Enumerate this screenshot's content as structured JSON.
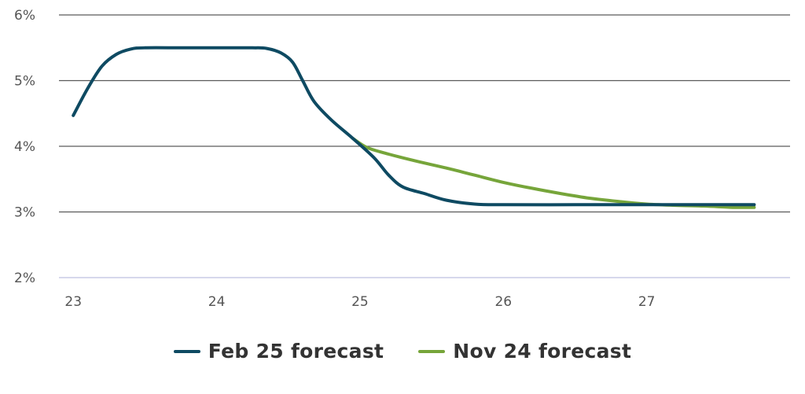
{
  "chart_data": {
    "type": "line",
    "x_tick_labels": [
      "23",
      "24",
      "25",
      "26",
      "27"
    ],
    "y_tick_labels": [
      "6%",
      "5%",
      "4%",
      "3%",
      "2%"
    ],
    "x_ticks": [
      23,
      24,
      25,
      26,
      27
    ],
    "y_ticks": [
      6,
      5,
      4,
      3,
      2
    ],
    "xlim": [
      22.9,
      28.0
    ],
    "ylim": [
      2,
      6
    ],
    "grid": true,
    "legend_position": "bottom-center",
    "title": "",
    "xlabel": "",
    "ylabel": "",
    "series": [
      {
        "name": "Feb 25 forecast",
        "color": "#0e4a62",
        "points": [
          [
            23.0,
            4.47
          ],
          [
            23.1,
            4.88
          ],
          [
            23.2,
            5.22
          ],
          [
            23.3,
            5.4
          ],
          [
            23.4,
            5.48
          ],
          [
            23.5,
            5.5
          ],
          [
            23.75,
            5.5
          ],
          [
            24.0,
            5.5
          ],
          [
            24.25,
            5.5
          ],
          [
            24.35,
            5.49
          ],
          [
            24.45,
            5.42
          ],
          [
            24.53,
            5.28
          ],
          [
            24.6,
            5.0
          ],
          [
            24.68,
            4.68
          ],
          [
            24.8,
            4.4
          ],
          [
            24.95,
            4.12
          ],
          [
            25.1,
            3.82
          ],
          [
            25.2,
            3.56
          ],
          [
            25.3,
            3.38
          ],
          [
            25.45,
            3.28
          ],
          [
            25.6,
            3.18
          ],
          [
            25.8,
            3.12
          ],
          [
            26.0,
            3.11
          ],
          [
            26.5,
            3.11
          ],
          [
            27.0,
            3.11
          ],
          [
            27.5,
            3.11
          ],
          [
            27.75,
            3.11
          ]
        ]
      },
      {
        "name": "Nov 24 forecast",
        "color": "#76a53a",
        "points": [
          [
            24.95,
            4.12
          ],
          [
            25.05,
            3.98
          ],
          [
            25.2,
            3.88
          ],
          [
            25.4,
            3.77
          ],
          [
            25.6,
            3.67
          ],
          [
            25.8,
            3.56
          ],
          [
            26.0,
            3.45
          ],
          [
            26.2,
            3.36
          ],
          [
            26.4,
            3.28
          ],
          [
            26.6,
            3.21
          ],
          [
            26.8,
            3.16
          ],
          [
            27.0,
            3.12
          ],
          [
            27.2,
            3.1
          ],
          [
            27.4,
            3.09
          ],
          [
            27.6,
            3.07
          ],
          [
            27.75,
            3.07
          ]
        ]
      }
    ]
  }
}
